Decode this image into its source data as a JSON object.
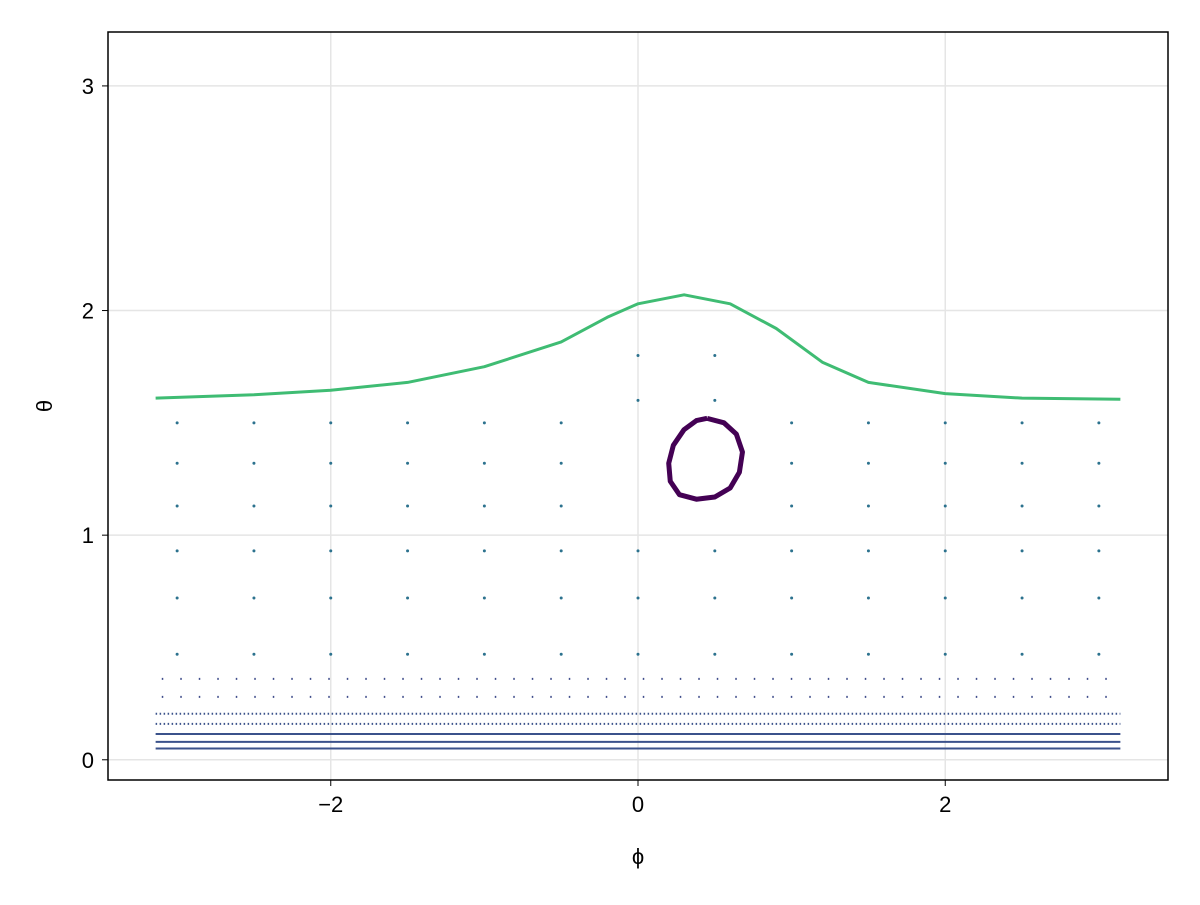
{
  "chart_data": {
    "type": "scatter",
    "xlabel": "ϕ",
    "ylabel": "θ",
    "xlim": [
      -3.45,
      3.45
    ],
    "ylim": [
      -0.09,
      3.24
    ],
    "xticks": [
      {
        "value": -2,
        "label": "−2"
      },
      0,
      2
    ],
    "yticks": [
      0,
      1,
      2,
      3
    ],
    "grid": true,
    "series": [
      {
        "mode": "line",
        "color": "#3b528b",
        "width": 2,
        "x": [
          -3.14,
          3.14
        ],
        "values": [
          0.05,
          0.05
        ]
      },
      {
        "mode": "line",
        "color": "#3b528b",
        "width": 2,
        "x": [
          -3.14,
          3.14
        ],
        "values": [
          0.08,
          0.08
        ]
      },
      {
        "mode": "line",
        "color": "#3b528b",
        "width": 2,
        "x": [
          -3.14,
          3.14
        ],
        "values": [
          0.115,
          0.115
        ]
      },
      {
        "mode": "line",
        "color": "#3b528b",
        "width": 2,
        "dash": "1.5 2.5",
        "x": [
          -3.14,
          3.14
        ],
        "values": [
          0.16,
          0.16
        ]
      },
      {
        "mode": "line",
        "color": "#3b528b",
        "width": 2,
        "dash": "1.5 2.5",
        "x": [
          -3.14,
          3.14
        ],
        "values": [
          0.205,
          0.205
        ]
      },
      {
        "mode": "line",
        "color": "#3e4c8a",
        "width": 2,
        "dash": "1.5 17",
        "x": [
          -3.1,
          3.14
        ],
        "values": [
          0.28,
          0.28
        ]
      },
      {
        "mode": "line",
        "color": "#3e4c8a",
        "width": 2,
        "dash": "1.5 17",
        "x": [
          -3.1,
          3.14
        ],
        "values": [
          0.36,
          0.36
        ]
      },
      {
        "mode": "scatter",
        "color": "#2c728e",
        "size": 1.5,
        "x": [
          -3.0,
          -3.0,
          -3.0,
          -3.0,
          -3.0,
          -3.0,
          -2.5,
          -2.5,
          -2.5,
          -2.5,
          -2.5,
          -2.5,
          -2.0,
          -2.0,
          -2.0,
          -2.0,
          -2.0,
          -2.0,
          -1.5,
          -1.5,
          -1.5,
          -1.5,
          -1.5,
          -1.5,
          -1.0,
          -1.0,
          -1.0,
          -1.0,
          -1.0,
          -1.0,
          -0.5,
          -0.5,
          -0.5,
          -0.5,
          -0.5,
          -0.5,
          0,
          0,
          0,
          0,
          0,
          0.5,
          0.5,
          0.5,
          0.5,
          0.5,
          1.0,
          1.0,
          1.0,
          1.0,
          1.0,
          1.0,
          1.5,
          1.5,
          1.5,
          1.5,
          1.5,
          1.5,
          2.0,
          2.0,
          2.0,
          2.0,
          2.0,
          2.0,
          2.5,
          2.5,
          2.5,
          2.5,
          2.5,
          2.5,
          3.0,
          3.0,
          3.0,
          3.0,
          3.0,
          3.0
        ],
        "values": [
          0.47,
          0.72,
          0.93,
          1.13,
          1.32,
          1.5,
          0.47,
          0.72,
          0.93,
          1.13,
          1.32,
          1.5,
          0.47,
          0.72,
          0.93,
          1.13,
          1.32,
          1.5,
          0.47,
          0.72,
          0.93,
          1.13,
          1.32,
          1.5,
          0.47,
          0.72,
          0.93,
          1.13,
          1.32,
          1.5,
          0.47,
          0.72,
          0.93,
          1.13,
          1.32,
          1.5,
          0.47,
          0.72,
          0.93,
          1.6,
          1.8,
          0.47,
          0.72,
          0.93,
          1.6,
          1.8,
          0.47,
          0.72,
          0.93,
          1.13,
          1.32,
          1.5,
          0.47,
          0.72,
          0.93,
          1.13,
          1.32,
          1.5,
          0.47,
          0.72,
          0.93,
          1.13,
          1.32,
          1.5,
          0.47,
          0.72,
          0.93,
          1.13,
          1.32,
          1.5,
          0.47,
          0.72,
          0.93,
          1.13,
          1.32,
          1.5
        ]
      },
      {
        "mode": "line",
        "color": "#440154",
        "width": 5,
        "x": [
          0.45,
          0.56,
          0.64,
          0.68,
          0.66,
          0.6,
          0.5,
          0.38,
          0.27,
          0.21,
          0.2,
          0.23,
          0.3,
          0.38,
          0.45
        ],
        "values": [
          1.52,
          1.5,
          1.45,
          1.37,
          1.28,
          1.21,
          1.17,
          1.16,
          1.18,
          1.24,
          1.32,
          1.4,
          1.47,
          1.51,
          1.52
        ]
      },
      {
        "mode": "line",
        "color": "#3fbc73",
        "width": 3,
        "x": [
          -3.14,
          -2.5,
          -2.0,
          -1.5,
          -1.0,
          -0.5,
          -0.2,
          0,
          0.3,
          0.6,
          0.9,
          1.2,
          1.5,
          2.0,
          2.5,
          3.14
        ],
        "values": [
          1.61,
          1.625,
          1.645,
          1.68,
          1.75,
          1.86,
          1.97,
          2.03,
          2.07,
          2.03,
          1.92,
          1.77,
          1.68,
          1.63,
          1.61,
          1.605
        ]
      }
    ]
  }
}
